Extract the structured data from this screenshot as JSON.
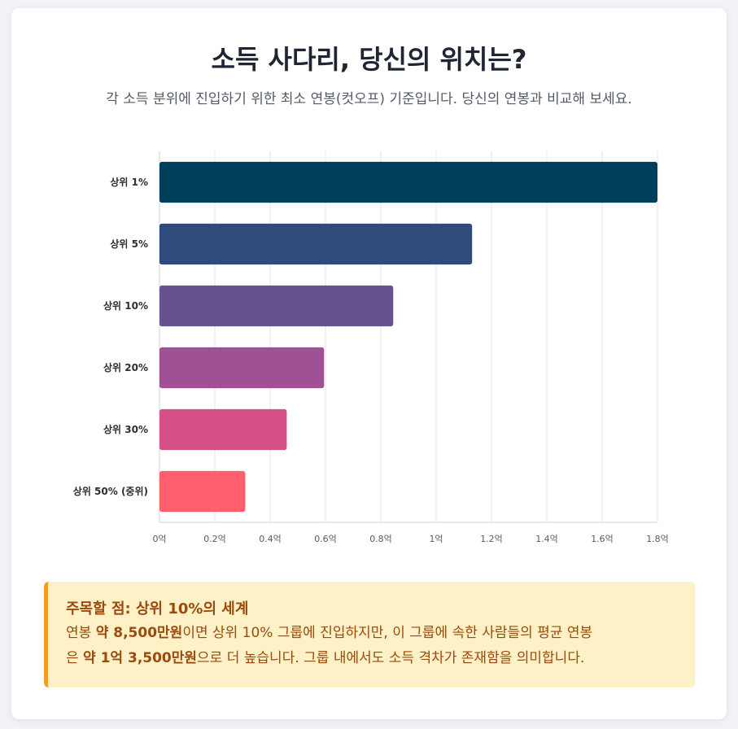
{
  "page": {
    "title": "소득 사다리, 당신의 위치는?",
    "subtitle": "각 소득 분위에 진입하기 위한 최소 연봉(컷오프) 기준입니다. 당신의 연봉과 비교해 보세요."
  },
  "chart_data": {
    "type": "bar",
    "orientation": "horizontal",
    "categories": [
      "상위 1%",
      "상위 5%",
      "상위 10%",
      "상위 20%",
      "상위 30%",
      "상위 50% (중위)"
    ],
    "values": [
      1.8,
      1.13,
      0.845,
      0.595,
      0.46,
      0.31
    ],
    "unit": "억",
    "xlim": [
      0,
      1.8
    ],
    "xticks": [
      0,
      0.2,
      0.4,
      0.6,
      0.8,
      1,
      1.2,
      1.4,
      1.6,
      1.8
    ],
    "xtick_labels": [
      "0억",
      "0.2억",
      "0.4억",
      "0.6억",
      "0.8억",
      "1억",
      "1.2억",
      "1.4억",
      "1.6억",
      "1.8억"
    ],
    "colors": [
      "#003f5c",
      "#2f4b7c",
      "#665191",
      "#a05195",
      "#d45087",
      "#ff5f6d"
    ],
    "grid": true,
    "legend": "none"
  },
  "note": {
    "title": "주목할 점: 상위 10%의 세계",
    "line1_a": "연봉 ",
    "line1_b": "약 8,500만원",
    "line1_c": "이면 상위 10% 그룹에 진입하지만, 이 그룹에 속한 사람들의 평균 연봉",
    "line2_a": "은 ",
    "line2_b": "약 1억 3,500만원",
    "line2_c": "으로 더 높습니다. 그룹 내에서도 소득 격차가 존재함을 의미합니다."
  }
}
